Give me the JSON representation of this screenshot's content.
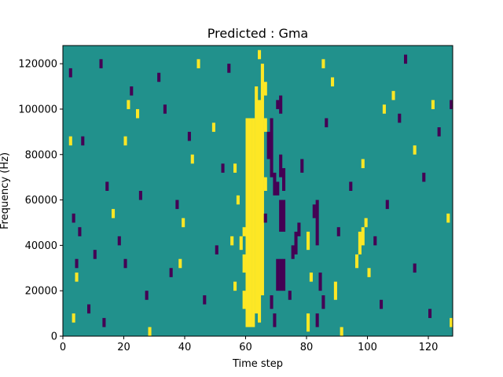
{
  "chart_data": {
    "type": "heatmap",
    "title": "Predicted : Gma",
    "xlabel": "Time step",
    "ylabel": "Frequency (Hz)",
    "xlim": [
      0,
      128
    ],
    "ylim": [
      0,
      128000
    ],
    "x_ticks": [
      0,
      20,
      40,
      60,
      80,
      100,
      120
    ],
    "x_tick_labels": [
      "0",
      "20",
      "40",
      "60",
      "80",
      "100",
      "120"
    ],
    "y_ticks": [
      0,
      20000,
      40000,
      60000,
      80000,
      100000,
      120000
    ],
    "y_tick_labels": [
      "0",
      "20000",
      "40000",
      "60000",
      "80000",
      "100000",
      "120000"
    ],
    "grid": false,
    "rows": 128,
    "cols": 128,
    "value_levels": [
      -1,
      0,
      1
    ],
    "colors": {
      "-1": "#440154",
      "0": "#21918c",
      "1": "#fde725"
    },
    "background_value": 0,
    "cells": [
      {
        "x": 60,
        "y0": 4000,
        "y1": 96000,
        "v": 1
      },
      {
        "x": 61,
        "y0": 4000,
        "y1": 96000,
        "v": 1
      },
      {
        "x": 62,
        "y0": 4000,
        "y1": 96000,
        "v": 1
      },
      {
        "x": 63,
        "y0": 10000,
        "y1": 110000,
        "v": 1
      },
      {
        "x": 64,
        "y0": 6000,
        "y1": 104000,
        "v": 1
      },
      {
        "x": 65,
        "y0": 18000,
        "y1": 120000,
        "v": 1
      },
      {
        "x": 59,
        "y0": 12000,
        "y1": 20000,
        "v": 1
      },
      {
        "x": 59,
        "y0": 28000,
        "y1": 36000,
        "v": 1
      },
      {
        "x": 59,
        "y0": 44000,
        "y1": 48000,
        "v": 1
      },
      {
        "x": 58,
        "y0": 38000,
        "y1": 44000,
        "v": 1
      },
      {
        "x": 57,
        "y0": 58000,
        "y1": 62000,
        "v": 1
      },
      {
        "x": 56,
        "y0": 72000,
        "y1": 76000,
        "v": 1
      },
      {
        "x": 55,
        "y0": 40000,
        "y1": 44000,
        "v": 1
      },
      {
        "x": 66,
        "y0": 90000,
        "y1": 96000,
        "v": 1
      },
      {
        "x": 66,
        "y0": 64000,
        "y1": 70000,
        "v": 1
      },
      {
        "x": 66,
        "y0": 106000,
        "y1": 112000,
        "v": 1
      },
      {
        "x": 67,
        "y0": 78000,
        "y1": 90000,
        "v": -1
      },
      {
        "x": 68,
        "y0": 70000,
        "y1": 96000,
        "v": -1
      },
      {
        "x": 69,
        "y0": 62000,
        "y1": 72000,
        "v": -1
      },
      {
        "x": 70,
        "y0": 62000,
        "y1": 68000,
        "v": -1
      },
      {
        "x": 70,
        "y0": 100000,
        "y1": 104000,
        "v": -1
      },
      {
        "x": 71,
        "y0": 98000,
        "y1": 106000,
        "v": -1
      },
      {
        "x": 70,
        "y0": 20000,
        "y1": 34000,
        "v": -1
      },
      {
        "x": 71,
        "y0": 20000,
        "y1": 34000,
        "v": -1
      },
      {
        "x": 72,
        "y0": 20000,
        "y1": 34000,
        "v": -1
      },
      {
        "x": 71,
        "y0": 46000,
        "y1": 60000,
        "v": -1
      },
      {
        "x": 72,
        "y0": 46000,
        "y1": 60000,
        "v": -1
      },
      {
        "x": 71,
        "y0": 70000,
        "y1": 80000,
        "v": -1
      },
      {
        "x": 72,
        "y0": 64000,
        "y1": 74000,
        "v": -1
      },
      {
        "x": 68,
        "y0": 12000,
        "y1": 18000,
        "v": -1
      },
      {
        "x": 69,
        "y0": 4000,
        "y1": 10000,
        "v": -1
      },
      {
        "x": 66,
        "y0": 50000,
        "y1": 54000,
        "v": -1
      },
      {
        "x": 74,
        "y0": 16000,
        "y1": 20000,
        "v": -1
      },
      {
        "x": 75,
        "y0": 34000,
        "y1": 40000,
        "v": -1
      },
      {
        "x": 76,
        "y0": 36000,
        "y1": 46000,
        "v": -1
      },
      {
        "x": 77,
        "y0": 44000,
        "y1": 50000,
        "v": -1
      },
      {
        "x": 78,
        "y0": 72000,
        "y1": 78000,
        "v": -1
      },
      {
        "x": 82,
        "y0": 52000,
        "y1": 58000,
        "v": -1
      },
      {
        "x": 83,
        "y0": 40000,
        "y1": 60000,
        "v": -1
      },
      {
        "x": 84,
        "y0": 20000,
        "y1": 28000,
        "v": -1
      },
      {
        "x": 85,
        "y0": 12000,
        "y1": 18000,
        "v": -1
      },
      {
        "x": 83,
        "y0": 4000,
        "y1": 10000,
        "v": -1
      },
      {
        "x": 80,
        "y0": 2000,
        "y1": 10000,
        "v": 1
      },
      {
        "x": 80,
        "y0": 38000,
        "y1": 46000,
        "v": 1
      },
      {
        "x": 81,
        "y0": 24000,
        "y1": 28000,
        "v": 1
      },
      {
        "x": 89,
        "y0": 16000,
        "y1": 24000,
        "v": 1
      },
      {
        "x": 96,
        "y0": 30000,
        "y1": 36000,
        "v": 1
      },
      {
        "x": 97,
        "y0": 36000,
        "y1": 46000,
        "v": 1
      },
      {
        "x": 98,
        "y0": 40000,
        "y1": 48000,
        "v": 1
      },
      {
        "x": 99,
        "y0": 48000,
        "y1": 52000,
        "v": 1
      },
      {
        "x": 100,
        "y0": 26000,
        "y1": 30000,
        "v": 1
      },
      {
        "x": 2,
        "y0": 84000,
        "y1": 88000,
        "v": 1
      },
      {
        "x": 3,
        "y0": 6000,
        "y1": 10000,
        "v": 1
      },
      {
        "x": 4,
        "y0": 24000,
        "y1": 28000,
        "v": 1
      },
      {
        "x": 16,
        "y0": 52000,
        "y1": 56000,
        "v": 1
      },
      {
        "x": 20,
        "y0": 84000,
        "y1": 88000,
        "v": 1
      },
      {
        "x": 21,
        "y0": 100000,
        "y1": 104000,
        "v": 1
      },
      {
        "x": 24,
        "y0": 96000,
        "y1": 100000,
        "v": 1
      },
      {
        "x": 28,
        "y0": 0,
        "y1": 4000,
        "v": 1
      },
      {
        "x": 38,
        "y0": 30000,
        "y1": 34000,
        "v": 1
      },
      {
        "x": 39,
        "y0": 48000,
        "y1": 52000,
        "v": 1
      },
      {
        "x": 42,
        "y0": 76000,
        "y1": 80000,
        "v": 1
      },
      {
        "x": 44,
        "y0": 118000,
        "y1": 122000,
        "v": 1
      },
      {
        "x": 49,
        "y0": 90000,
        "y1": 94000,
        "v": 1
      },
      {
        "x": 56,
        "y0": 20000,
        "y1": 24000,
        "v": 1
      },
      {
        "x": 64,
        "y0": 122000,
        "y1": 126000,
        "v": 1
      },
      {
        "x": 85,
        "y0": 118000,
        "y1": 122000,
        "v": 1
      },
      {
        "x": 88,
        "y0": 110000,
        "y1": 114000,
        "v": 1
      },
      {
        "x": 91,
        "y0": 0,
        "y1": 4000,
        "v": 1
      },
      {
        "x": 98,
        "y0": 74000,
        "y1": 78000,
        "v": 1
      },
      {
        "x": 105,
        "y0": 98000,
        "y1": 102000,
        "v": 1
      },
      {
        "x": 108,
        "y0": 104000,
        "y1": 108000,
        "v": 1
      },
      {
        "x": 115,
        "y0": 80000,
        "y1": 84000,
        "v": 1
      },
      {
        "x": 121,
        "y0": 100000,
        "y1": 104000,
        "v": 1
      },
      {
        "x": 126,
        "y0": 50000,
        "y1": 54000,
        "v": 1
      },
      {
        "x": 127,
        "y0": 4000,
        "y1": 8000,
        "v": 1
      },
      {
        "x": 2,
        "y0": 114000,
        "y1": 118000,
        "v": -1
      },
      {
        "x": 3,
        "y0": 50000,
        "y1": 54000,
        "v": -1
      },
      {
        "x": 4,
        "y0": 30000,
        "y1": 34000,
        "v": -1
      },
      {
        "x": 5,
        "y0": 44000,
        "y1": 48000,
        "v": -1
      },
      {
        "x": 6,
        "y0": 84000,
        "y1": 88000,
        "v": -1
      },
      {
        "x": 8,
        "y0": 10000,
        "y1": 14000,
        "v": -1
      },
      {
        "x": 10,
        "y0": 34000,
        "y1": 38000,
        "v": -1
      },
      {
        "x": 12,
        "y0": 118000,
        "y1": 122000,
        "v": -1
      },
      {
        "x": 13,
        "y0": 4000,
        "y1": 8000,
        "v": -1
      },
      {
        "x": 14,
        "y0": 64000,
        "y1": 68000,
        "v": -1
      },
      {
        "x": 18,
        "y0": 40000,
        "y1": 44000,
        "v": -1
      },
      {
        "x": 20,
        "y0": 30000,
        "y1": 34000,
        "v": -1
      },
      {
        "x": 22,
        "y0": 106000,
        "y1": 110000,
        "v": -1
      },
      {
        "x": 25,
        "y0": 60000,
        "y1": 64000,
        "v": -1
      },
      {
        "x": 27,
        "y0": 16000,
        "y1": 20000,
        "v": -1
      },
      {
        "x": 31,
        "y0": 112000,
        "y1": 116000,
        "v": -1
      },
      {
        "x": 33,
        "y0": 98000,
        "y1": 102000,
        "v": -1
      },
      {
        "x": 35,
        "y0": 26000,
        "y1": 30000,
        "v": -1
      },
      {
        "x": 37,
        "y0": 56000,
        "y1": 60000,
        "v": -1
      },
      {
        "x": 41,
        "y0": 86000,
        "y1": 90000,
        "v": -1
      },
      {
        "x": 46,
        "y0": 14000,
        "y1": 18000,
        "v": -1
      },
      {
        "x": 50,
        "y0": 36000,
        "y1": 40000,
        "v": -1
      },
      {
        "x": 52,
        "y0": 72000,
        "y1": 76000,
        "v": -1
      },
      {
        "x": 54,
        "y0": 116000,
        "y1": 120000,
        "v": -1
      },
      {
        "x": 86,
        "y0": 92000,
        "y1": 96000,
        "v": -1
      },
      {
        "x": 90,
        "y0": 44000,
        "y1": 48000,
        "v": -1
      },
      {
        "x": 94,
        "y0": 64000,
        "y1": 68000,
        "v": -1
      },
      {
        "x": 102,
        "y0": 40000,
        "y1": 44000,
        "v": -1
      },
      {
        "x": 104,
        "y0": 12000,
        "y1": 16000,
        "v": -1
      },
      {
        "x": 106,
        "y0": 56000,
        "y1": 60000,
        "v": -1
      },
      {
        "x": 110,
        "y0": 94000,
        "y1": 98000,
        "v": -1
      },
      {
        "x": 112,
        "y0": 120000,
        "y1": 124000,
        "v": -1
      },
      {
        "x": 115,
        "y0": 28000,
        "y1": 32000,
        "v": -1
      },
      {
        "x": 118,
        "y0": 68000,
        "y1": 72000,
        "v": -1
      },
      {
        "x": 120,
        "y0": 8000,
        "y1": 12000,
        "v": -1
      },
      {
        "x": 123,
        "y0": 88000,
        "y1": 92000,
        "v": -1
      },
      {
        "x": 127,
        "y0": 100000,
        "y1": 104000,
        "v": -1
      }
    ]
  }
}
